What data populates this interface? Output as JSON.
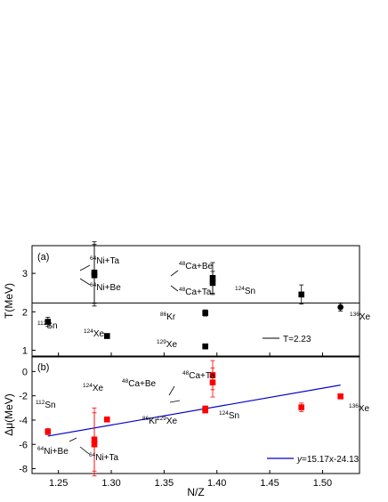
{
  "chart_data": [
    {
      "panel": "(a)",
      "type": "scatter",
      "ylabel": "T(MeV)",
      "xlim": [
        1.225,
        1.535
      ],
      "ylim": [
        0.85,
        3.72
      ],
      "yticks": [
        1,
        2,
        3
      ],
      "xticks": [
        1.25,
        1.3,
        1.35,
        1.4,
        1.45,
        1.5
      ],
      "points": [
        {
          "x": 1.24,
          "y": 1.74,
          "err": 0.12,
          "label": "Sn",
          "mass": "112",
          "marker": "square"
        },
        {
          "x": 1.296,
          "y": 1.37,
          "err": 0.05,
          "label": "Xe",
          "mass": "124",
          "marker": "square"
        },
        {
          "x": 1.284,
          "y": 2.95,
          "err": 0.8,
          "label": "Ni+Ta",
          "mass": "64",
          "marker": "square"
        },
        {
          "x": 1.284,
          "y": 3.02,
          "err": 0.8,
          "label": "Ni+Be",
          "mass": "64",
          "marker": "square"
        },
        {
          "x": 1.389,
          "y": 1.97,
          "err": 0.08,
          "label": "Kr",
          "mass": "86",
          "marker": "square"
        },
        {
          "x": 1.389,
          "y": 1.1,
          "err": 0.04,
          "label": "Xe",
          "mass": "129",
          "marker": "square"
        },
        {
          "x": 1.396,
          "y": 2.88,
          "err": 0.4,
          "label": "Ca+Be",
          "mass": "48",
          "marker": "square"
        },
        {
          "x": 1.396,
          "y": 2.75,
          "err": 0.3,
          "label": "Ca+Ta",
          "mass": "48",
          "marker": "square"
        },
        {
          "x": 1.48,
          "y": 2.45,
          "err": 0.25,
          "label": "Sn",
          "mass": "124",
          "marker": "square"
        },
        {
          "x": 1.517,
          "y": 2.12,
          "err": 0.1,
          "label": "Xe",
          "mass": "136",
          "marker": "circle"
        }
      ],
      "hline": {
        "y": 2.23,
        "label": "T=2.23"
      }
    },
    {
      "panel": "(b)",
      "type": "scatter",
      "ylabel": "Δμ(MeV)",
      "xlabel": "N/Z",
      "xlim": [
        1.225,
        1.535
      ],
      "ylim": [
        -8.4,
        1.2
      ],
      "yticks": [
        -8,
        -6,
        -4,
        -2,
        0
      ],
      "xticks": [
        1.25,
        1.3,
        1.35,
        1.4,
        1.45,
        1.5
      ],
      "xticklabels": [
        "1.25",
        "1.30",
        "1.35",
        "1.40",
        "1.45",
        "1.50"
      ],
      "points": [
        {
          "x": 1.24,
          "y": -4.95,
          "err": 0.25,
          "label": "Sn",
          "mass": "112"
        },
        {
          "x": 1.296,
          "y": -3.95,
          "err": 0.2,
          "label": "Xe",
          "mass": "124"
        },
        {
          "x": 1.284,
          "y": -5.6,
          "err": 2.6,
          "label": "Ni+Be",
          "mass": "64"
        },
        {
          "x": 1.284,
          "y": -6.0,
          "err": 2.6,
          "label": "Ni+Ta",
          "mass": "64"
        },
        {
          "x": 1.389,
          "y": -3.2,
          "err": 0.2,
          "label": "Kr",
          "mass": "86"
        },
        {
          "x": 1.389,
          "y": -3.05,
          "err": 0.2,
          "label": "Xe",
          "mass": "129"
        },
        {
          "x": 1.396,
          "y": -0.3,
          "err": 1.2,
          "label": "Ca+Ta",
          "mass": "48"
        },
        {
          "x": 1.396,
          "y": -0.9,
          "err": 1.2,
          "label": "Ca+Be",
          "mass": "48"
        },
        {
          "x": 1.48,
          "y": -2.95,
          "err": 0.35,
          "label": "Sn",
          "mass": "124"
        },
        {
          "x": 1.517,
          "y": -2.05,
          "err": 0.2,
          "label": "Xe",
          "mass": "136"
        }
      ],
      "fit": {
        "slope": 15.17,
        "intercept": -24.13,
        "x_range": [
          1.24,
          1.517
        ],
        "label_prefix": "y",
        "label_rest": "=15.17x-24.13"
      }
    }
  ],
  "colors": {
    "axis": "#000000",
    "panel_a_marker": "#000000",
    "panel_b_marker": "#ff0000",
    "fit_line": "#0000cc"
  }
}
